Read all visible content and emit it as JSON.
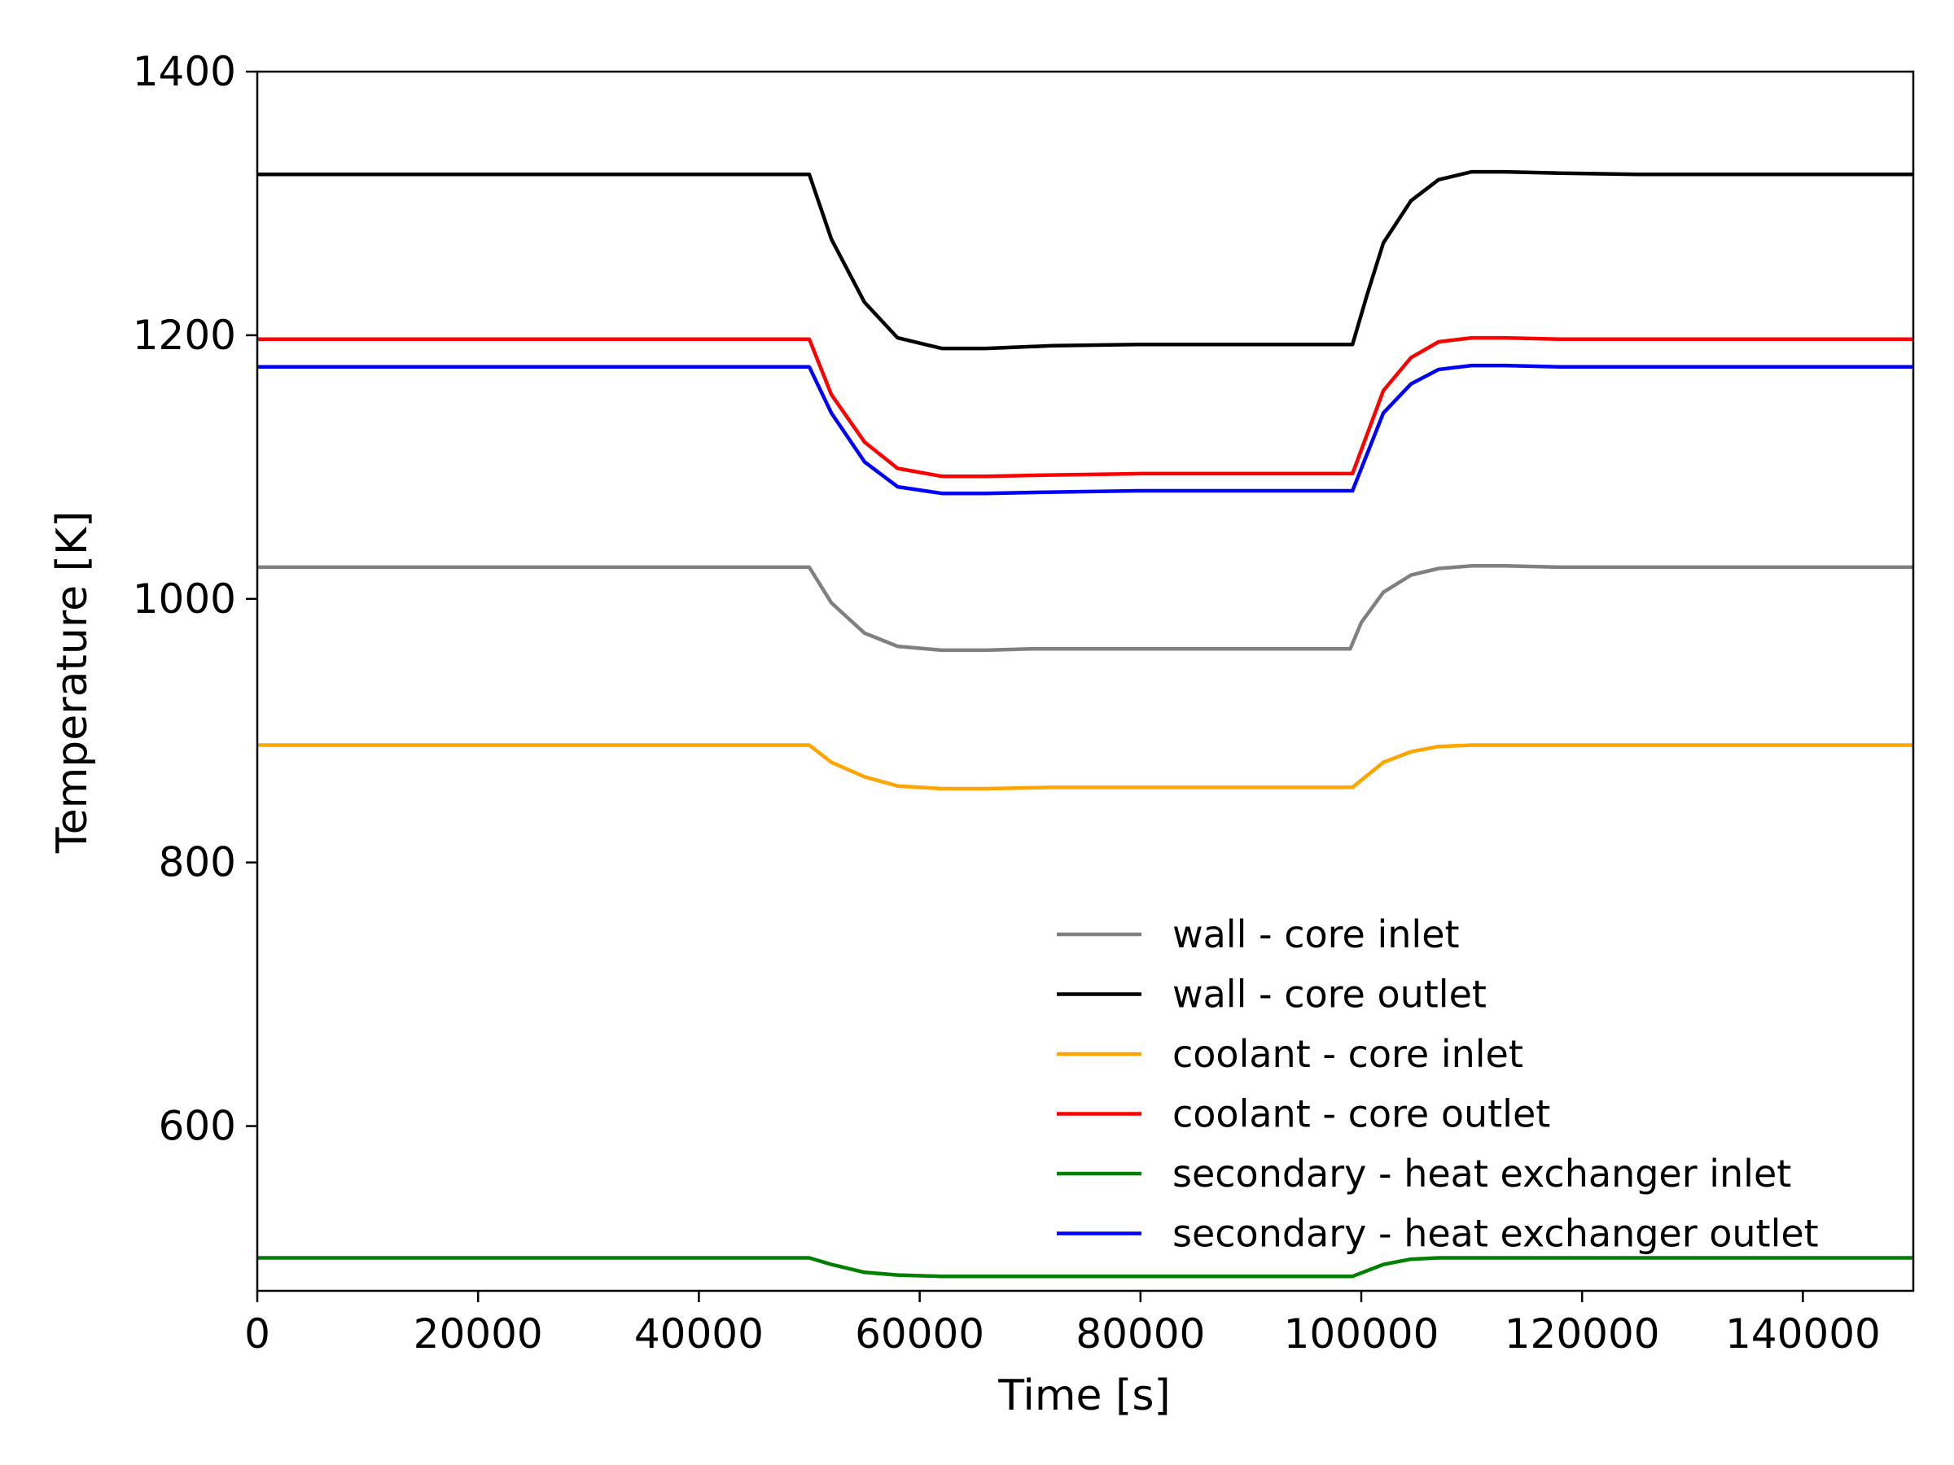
{
  "chart_data": {
    "type": "line",
    "title": "",
    "xlabel": "Time [s]",
    "ylabel": "Temperature [K]",
    "xlim": [
      0,
      150000
    ],
    "ylim": [
      475,
      1400
    ],
    "xticks": [
      0,
      20000,
      40000,
      60000,
      80000,
      100000,
      120000,
      140000
    ],
    "xtick_labels": [
      "0",
      "20000",
      "40000",
      "60000",
      "80000",
      "100000",
      "120000",
      "140000"
    ],
    "yticks": [
      600,
      800,
      1000,
      1200,
      1400
    ],
    "ytick_labels": [
      "600",
      "800",
      "1000",
      "1200",
      "1400"
    ],
    "grid": false,
    "legend_position": "lower-right",
    "series": [
      {
        "name": "wall - core inlet",
        "color": "#808080",
        "x": [
          0,
          50000,
          52000,
          55000,
          58000,
          62000,
          66000,
          70000,
          80000,
          90000,
          99000,
          100000,
          102000,
          104500,
          107000,
          110000,
          113000,
          118000,
          125000,
          135000,
          150000
        ],
        "y": [
          1024,
          1024,
          997,
          974,
          964,
          961,
          961,
          962,
          962,
          962,
          962,
          982,
          1005,
          1018,
          1023,
          1025,
          1025,
          1024,
          1024,
          1024,
          1024
        ]
      },
      {
        "name": "wall - core outlet",
        "color": "#000000",
        "x": [
          0,
          50000,
          52000,
          55000,
          58000,
          62000,
          66000,
          72000,
          80000,
          90000,
          99200,
          100500,
          102000,
          104500,
          107000,
          110000,
          113000,
          118000,
          125000,
          135000,
          150000
        ],
        "y": [
          1322,
          1322,
          1273,
          1225,
          1198,
          1190,
          1190,
          1192,
          1193,
          1193,
          1193,
          1230,
          1270,
          1302,
          1318,
          1324,
          1324,
          1323,
          1322,
          1322,
          1322
        ]
      },
      {
        "name": "coolant - core inlet",
        "color": "#ffa500",
        "x": [
          0,
          50000,
          52000,
          55000,
          58000,
          62000,
          66000,
          72000,
          80000,
          90000,
          99200,
          102000,
          104500,
          107000,
          110000,
          113000,
          118000,
          125000,
          135000,
          150000
        ],
        "y": [
          889,
          889,
          876,
          865,
          858,
          856,
          856,
          857,
          857,
          857,
          857,
          876,
          884,
          888,
          889,
          889,
          889,
          889,
          889,
          889
        ]
      },
      {
        "name": "coolant - core outlet",
        "color": "#ff0000",
        "x": [
          0,
          50000,
          52000,
          55000,
          58000,
          62000,
          66000,
          72000,
          80000,
          90000,
          99200,
          102000,
          104500,
          107000,
          110000,
          113000,
          118000,
          125000,
          135000,
          150000
        ],
        "y": [
          1197,
          1197,
          1155,
          1119,
          1099,
          1093,
          1093,
          1094,
          1095,
          1095,
          1095,
          1158,
          1183,
          1195,
          1198,
          1198,
          1197,
          1197,
          1197,
          1197
        ]
      },
      {
        "name": "secondary - heat exchanger inlet",
        "color": "#008000",
        "x": [
          0,
          50000,
          52000,
          55000,
          58000,
          62000,
          66000,
          72000,
          80000,
          90000,
          99200,
          102000,
          104500,
          107000,
          110000,
          113000,
          118000,
          125000,
          135000,
          150000
        ],
        "y": [
          500,
          500,
          495,
          489,
          487,
          486,
          486,
          486,
          486,
          486,
          486,
          495,
          499,
          500,
          500,
          500,
          500,
          500,
          500,
          500
        ]
      },
      {
        "name": "secondary - heat exchanger outlet",
        "color": "#0000ff",
        "x": [
          0,
          50000,
          52000,
          55000,
          58000,
          62000,
          66000,
          72000,
          80000,
          90000,
          99200,
          102000,
          104500,
          107000,
          110000,
          113000,
          118000,
          125000,
          135000,
          150000
        ],
        "y": [
          1176,
          1176,
          1141,
          1104,
          1085,
          1080,
          1080,
          1081,
          1082,
          1082,
          1082,
          1141,
          1163,
          1174,
          1177,
          1177,
          1176,
          1176,
          1176,
          1176
        ]
      }
    ]
  }
}
